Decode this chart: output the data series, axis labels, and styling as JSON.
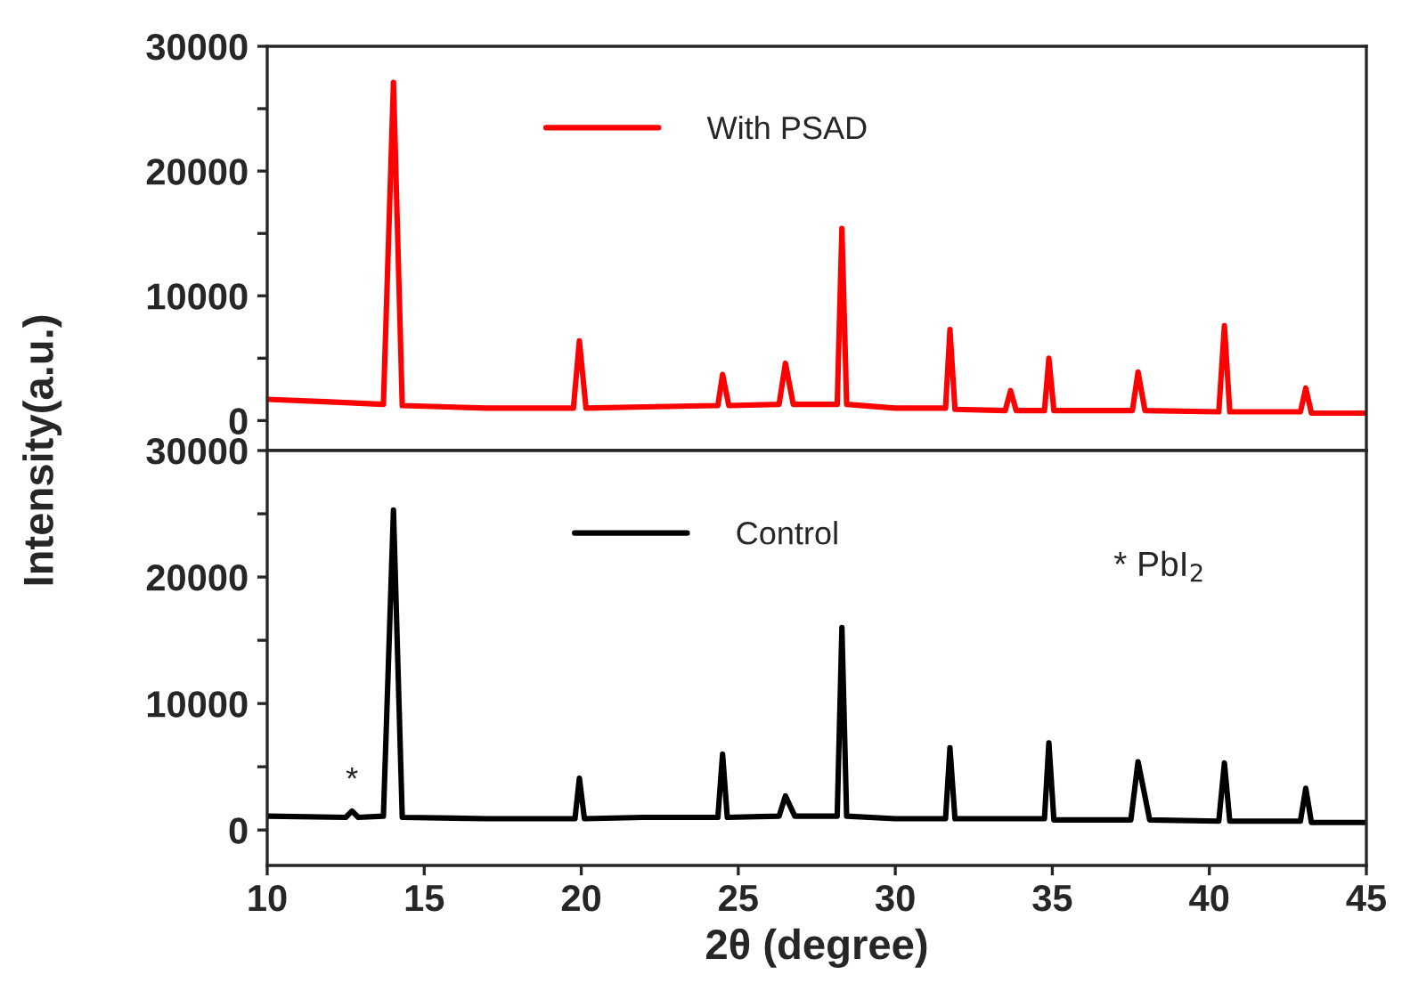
{
  "chart_data": [
    {
      "type": "line",
      "ylabel": "Intensity(a.u.)",
      "xlim": [
        10,
        45
      ],
      "xticks": [
        10,
        15,
        20,
        25,
        30,
        35,
        40,
        45
      ],
      "ylim": [
        -2400,
        30000
      ],
      "yticks": [
        0,
        {
          "value": 5000,
          "label": null
        },
        10000,
        {
          "value": 15000,
          "label": null
        },
        20000,
        {
          "value": 25000,
          "label": null
        },
        30000
      ],
      "tick_labels": "y",
      "legend": "top",
      "grid": false,
      "series": [
        {
          "name": "With PSAD",
          "color": "#ff0000",
          "x": [
            10,
            12,
            13.7,
            14.02,
            14.3,
            17,
            19.75,
            19.94,
            20.15,
            22,
            24.35,
            24.5,
            24.7,
            26.3,
            26.5,
            26.75,
            28.15,
            28.3,
            28.45,
            30,
            31.6,
            31.74,
            31.9,
            33.5,
            33.67,
            33.85,
            34.75,
            34.89,
            35.05,
            37.55,
            37.73,
            37.95,
            40.3,
            40.48,
            40.65,
            42.9,
            43.07,
            43.25,
            45
          ],
          "values": [
            1700,
            1500,
            1300,
            27100,
            1200,
            1000,
            1000,
            6400,
            1000,
            1100,
            1200,
            3700,
            1200,
            1300,
            4600,
            1300,
            1300,
            15400,
            1300,
            1000,
            1000,
            7300,
            900,
            800,
            2400,
            800,
            800,
            5000,
            800,
            800,
            3900,
            800,
            700,
            7600,
            700,
            700,
            2600,
            600,
            600
          ]
        }
      ]
    },
    {
      "type": "line",
      "xlabel": "2θ (degree)",
      "xlim": [
        10,
        45
      ],
      "xticks": [
        10,
        15,
        20,
        25,
        30,
        35,
        40,
        45
      ],
      "ylim": [
        -2800,
        30000
      ],
      "yticks": [
        0,
        {
          "value": 5000,
          "label": null
        },
        10000,
        {
          "value": 15000,
          "label": null
        },
        20000,
        {
          "value": 25000,
          "label": null
        },
        30000
      ],
      "legend": "top",
      "grid": false,
      "annotations": [
        {
          "text": "*",
          "x": 12.7,
          "y": 1500
        },
        "* PbI$_{2}$"
      ],
      "series": [
        {
          "name": "Control",
          "color": "#000000",
          "x": [
            10,
            12.5,
            12.7,
            12.9,
            13.7,
            14.02,
            14.3,
            17,
            19.8,
            19.94,
            20.1,
            22,
            24.35,
            24.5,
            24.65,
            26.3,
            26.5,
            26.8,
            28.15,
            28.3,
            28.45,
            30,
            31.6,
            31.74,
            31.9,
            33.5,
            34.75,
            34.89,
            35.05,
            37.5,
            37.73,
            38.1,
            40.3,
            40.48,
            40.65,
            42.9,
            43.07,
            43.25,
            45
          ],
          "values": [
            1100,
            1000,
            1500,
            1000,
            1100,
            25300,
            1000,
            900,
            900,
            4100,
            900,
            1000,
            1000,
            6000,
            1000,
            1100,
            2700,
            1100,
            1100,
            16000,
            1100,
            900,
            900,
            6500,
            900,
            900,
            900,
            6900,
            800,
            800,
            5400,
            800,
            700,
            5300,
            700,
            700,
            3300,
            600,
            600
          ]
        }
      ]
    }
  ]
}
